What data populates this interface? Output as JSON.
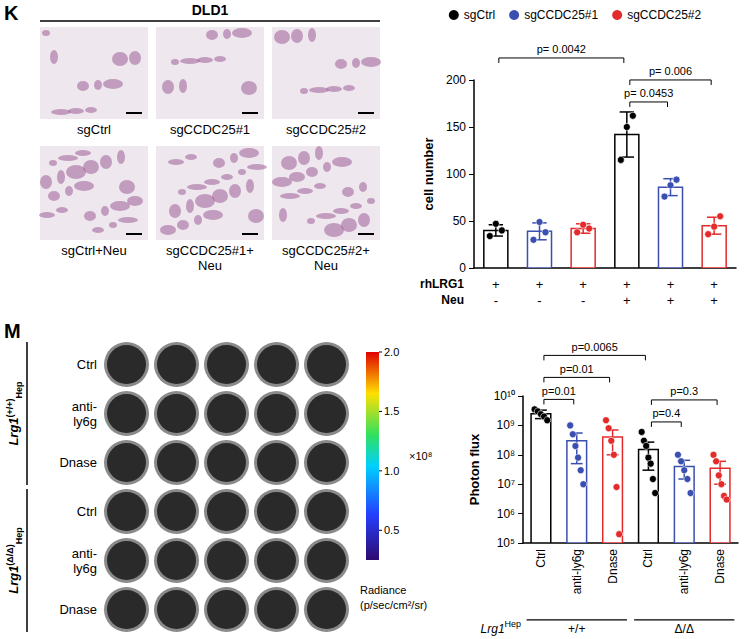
{
  "figure": {
    "panel_letters": [
      "K",
      "M"
    ],
    "K_images": {
      "title": "DLD1",
      "labels": [
        [
          "sgCtrl",
          "sgCCDC25#1",
          "sgCCDC25#2"
        ],
        [
          "sgCtrl+Neu",
          "sgCCDC25#1+Neu",
          "sgCCDC25#2+Neu"
        ]
      ]
    },
    "M_images": {
      "groups": [
        {
          "label": {
            "main": "Lrg1",
            "sup": "(+/+)",
            "sub": "Hep"
          },
          "rows": [
            "Ctrl",
            "anti-ly6g",
            "Dnase"
          ]
        },
        {
          "label": {
            "main": "Lrg1",
            "sup": "(Δ/Δ)",
            "sub": "Hep"
          },
          "rows": [
            "Ctrl",
            "anti-ly6g",
            "Dnase"
          ]
        }
      ],
      "wells_per_row": 5,
      "colorbar": {
        "range": [
          0.25,
          2.0
        ],
        "ticks": [
          0.5,
          {
            "value": 1.0,
            "label": "1.0"
          },
          1.5,
          {
            "value": 2.0,
            "label": "2.0"
          }
        ],
        "multiplier": "×10⁸",
        "title": "Radiance (p/sec/cm²/sr)"
      }
    }
  },
  "chart_data": [
    {
      "type": "bar",
      "ylabel": "cell number",
      "categories": [
        null,
        null,
        null,
        null,
        null,
        null
      ],
      "x_rows": [
        {
          "label": "rhLRG1",
          "values": [
            "+",
            "+",
            "+",
            "+",
            "+",
            "+"
          ]
        },
        {
          "label": "Neu",
          "values": [
            "-",
            "-",
            "-",
            "+",
            "+",
            "+"
          ]
        }
      ],
      "series": [
        {
          "name": "sgCtrl",
          "color": "#000000",
          "values": [
            40,
            null,
            null,
            142,
            null,
            null
          ],
          "errors": [
            6,
            null,
            null,
            24,
            null,
            null
          ],
          "points": [
            [
              34,
              47,
              40
            ],
            null,
            null,
            [
              115,
              150,
              162
            ],
            null,
            null
          ]
        },
        {
          "name": "sgCCDC25#1",
          "color": "#3a4fb0",
          "values": [
            null,
            39,
            null,
            null,
            86,
            null
          ],
          "errors": [
            null,
            9,
            null,
            null,
            9,
            null
          ],
          "points": [
            null,
            [
              30,
              49,
              38
            ],
            null,
            null,
            [
              76,
              88,
              94
            ],
            null
          ]
        },
        {
          "name": "sgCCDC25#2",
          "color": "#e32b2b",
          "values": [
            null,
            null,
            42,
            null,
            null,
            45
          ],
          "errors": [
            null,
            null,
            5,
            null,
            null,
            9
          ],
          "points": [
            null,
            null,
            [
              38,
              46,
              42
            ],
            null,
            null,
            [
              36,
              44,
              55
            ]
          ]
        }
      ],
      "ylim": [
        0,
        200
      ],
      "yticks": [
        0,
        50,
        100,
        150,
        200
      ],
      "grid": false,
      "legend": "top",
      "annotations": [
        {
          "label": "p= 0.0042",
          "from": 0,
          "to": 3
        },
        {
          "label": "p= 0.006",
          "from": 3,
          "to": 5
        },
        {
          "label": "p= 0.0453",
          "from": 3,
          "to": 4
        }
      ]
    },
    {
      "type": "bar",
      "ylabel": "Photon flux",
      "categories": [
        "Ctrl",
        "anti-ly6g",
        "Dnase",
        "Ctrl",
        "anti-ly6g",
        "Dnase"
      ],
      "groups": [
        {
          "label": "+/+",
          "from": 0,
          "to": 2
        },
        {
          "label": "Δ/Δ",
          "from": 3,
          "to": 5
        }
      ],
      "group_title": {
        "main": "Lrg1",
        "sup": "Hep"
      },
      "series": [
        {
          "name": "Ctrl",
          "color": "#000000",
          "values": [
            2500000000.0,
            null,
            null,
            150000000.0,
            null,
            null
          ],
          "errors": [
            800000000.0,
            null,
            null,
            120000000.0,
            null,
            null
          ],
          "points": [
            [
              3500000000.0,
              3000000000.0,
              2400000000.0,
              2000000000.0,
              1500000000.0
            ],
            null,
            null,
            [
              600000000.0,
              300000000.0,
              200000000.0,
              80000000.0,
              50000000.0,
              15000000.0,
              5000000.0
            ],
            null,
            null
          ]
        },
        {
          "name": "anti-ly6g",
          "color": "#3a4fb0",
          "values": [
            null,
            300000000.0,
            null,
            null,
            40000000.0,
            null
          ],
          "errors": [
            null,
            250000000.0,
            null,
            null,
            25000000.0,
            null
          ],
          "points": [
            null,
            [
              1000000000.0,
              500000000.0,
              200000000.0,
              80000000.0,
              30000000.0,
              10000000.0
            ],
            null,
            null,
            [
              100000000.0,
              60000000.0,
              30000000.0,
              15000000.0,
              5000000.0
            ],
            null
          ]
        },
        {
          "name": "Dnase",
          "color": "#e32b2b",
          "values": [
            null,
            null,
            400000000.0,
            null,
            null,
            35000000.0
          ],
          "errors": [
            null,
            null,
            300000000.0,
            null,
            null,
            25000000.0
          ],
          "points": [
            null,
            null,
            [
              1500000000.0,
              800000000.0,
              300000000.0,
              100000000.0,
              8000000.0,
              200000.0
            ],
            null,
            null,
            [
              100000000.0,
              60000000.0,
              20000000.0,
              10000000.0,
              4000000.0,
              3000000.0
            ]
          ]
        }
      ],
      "ylim": [
        100000,
        10000000000
      ],
      "yticks": [
        {
          "value": 100000,
          "label": "10⁵"
        },
        {
          "value": 1000000,
          "label": "10⁶"
        },
        {
          "value": 10000000,
          "label": "10⁷"
        },
        {
          "value": 100000000,
          "label": "10⁸"
        },
        {
          "value": 1000000000,
          "label": "10⁹"
        },
        {
          "value": 10000000000,
          "label": "10¹⁰"
        }
      ],
      "log": "y",
      "grid": false,
      "annotations": [
        {
          "label": "p=0.0065",
          "from": 0,
          "to": 3
        },
        {
          "label": "p=0.01",
          "from": 0,
          "to": 2
        },
        {
          "label": "p=0.01",
          "from": 0,
          "to": 1
        },
        {
          "label": "p=0.3",
          "from": 3,
          "to": 5
        },
        {
          "label": "p=0.4",
          "from": 3,
          "to": 4
        }
      ]
    }
  ]
}
